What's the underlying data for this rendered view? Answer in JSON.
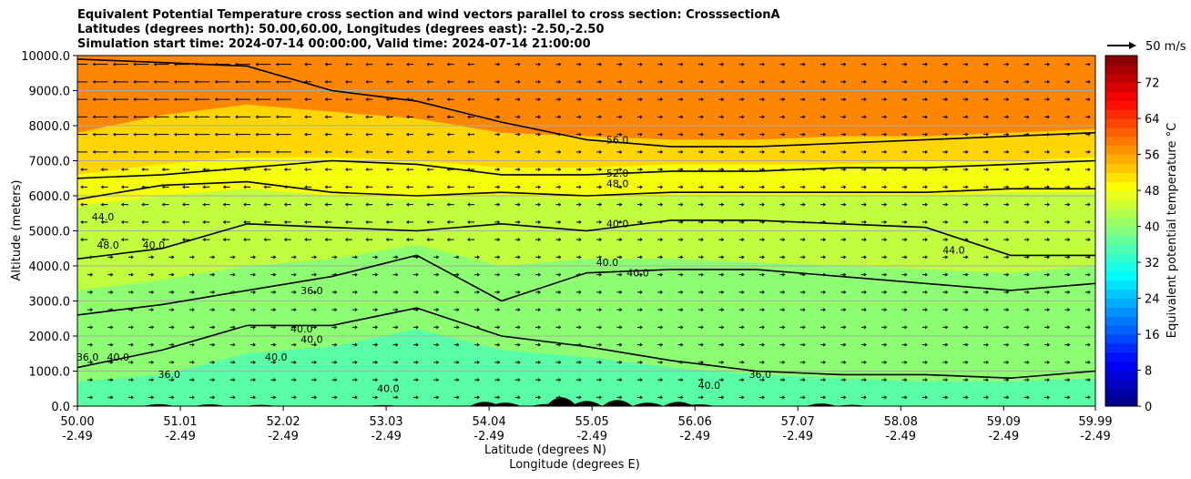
{
  "title_lines": [
    "Equivalent Potential Temperature cross section and wind vectors parallel to cross section: CrosssectionA",
    "Latitudes (degrees north): 50.00,60.00, Longitudes (degrees east): -2.50,-2.50",
    "Simulation start time: 2024-07-14 00:00:00, Valid time: 2024-07-14 21:00:00"
  ],
  "chart_data": {
    "type": "contour-cross-section",
    "ylabel": "Altitude (meters)",
    "xlabel_line1": "Latitude (degrees N)",
    "xlabel_line2": "Longitude (degrees E)",
    "ylim": [
      0,
      10000
    ],
    "xlim": [
      50.0,
      59.99
    ],
    "y_ticks": [
      "0.0",
      "1000.0",
      "2000.0",
      "3000.0",
      "4000.0",
      "5000.0",
      "6000.0",
      "7000.0",
      "8000.0",
      "9000.0",
      "10000.0"
    ],
    "x_ticks": [
      {
        "lat": "50.00",
        "lon": "-2.49"
      },
      {
        "lat": "51.01",
        "lon": "-2.49"
      },
      {
        "lat": "52.02",
        "lon": "-2.49"
      },
      {
        "lat": "53.03",
        "lon": "-2.49"
      },
      {
        "lat": "54.04",
        "lon": "-2.49"
      },
      {
        "lat": "55.05",
        "lon": "-2.49"
      },
      {
        "lat": "56.06",
        "lon": "-2.49"
      },
      {
        "lat": "57.07",
        "lon": "-2.49"
      },
      {
        "lat": "58.08",
        "lon": "-2.49"
      },
      {
        "lat": "59.09",
        "lon": "-2.49"
      },
      {
        "lat": "59.99",
        "lon": "-2.49"
      }
    ],
    "contour_lines": [
      {
        "level": "56.0",
        "height_m": [
          9900,
          9800,
          9700,
          9000,
          8700,
          8100,
          7600,
          7400,
          7400,
          7500,
          7600,
          7700,
          7800
        ]
      },
      {
        "level": "52.0",
        "height_m": [
          6500,
          6600,
          6800,
          7000,
          6900,
          6600,
          6600,
          6700,
          6700,
          6800,
          6800,
          6900,
          7000
        ]
      },
      {
        "level": "48.0",
        "height_m": [
          5900,
          6300,
          6400,
          6100,
          6000,
          6100,
          6000,
          6100,
          6100,
          6100,
          6100,
          6200,
          6200
        ]
      },
      {
        "level": "44.0",
        "height_m": [
          4200,
          4500,
          5200,
          5100,
          5000,
          5200,
          5000,
          5300,
          5300,
          5200,
          5100,
          4300,
          4300
        ]
      },
      {
        "level": "40.0",
        "height_m": [
          2600,
          2900,
          3300,
          3700,
          4300,
          3000,
          3800,
          3900,
          3900,
          3700,
          3500,
          3300,
          3500
        ]
      },
      {
        "level": "36.0",
        "height_m": [
          1100,
          1600,
          2300,
          2300,
          2800,
          2000,
          1700,
          1300,
          1000,
          900,
          900,
          800,
          1000
        ]
      }
    ],
    "contour_labels": [
      {
        "text": "56.0",
        "lat": 55.3,
        "alt": 7500
      },
      {
        "text": "52.0",
        "lat": 55.3,
        "alt": 6550
      },
      {
        "text": "48.0",
        "lat": 55.3,
        "alt": 6250
      },
      {
        "text": "40.0",
        "lat": 55.3,
        "alt": 5100
      },
      {
        "text": "40.0",
        "lat": 55.2,
        "alt": 4000
      },
      {
        "text": "40.0",
        "lat": 55.5,
        "alt": 3700
      },
      {
        "text": "44.0",
        "lat": 50.25,
        "alt": 5300
      },
      {
        "text": "48.0",
        "lat": 50.3,
        "alt": 4500
      },
      {
        "text": "40.0",
        "lat": 50.75,
        "alt": 4500
      },
      {
        "text": "36.0",
        "lat": 52.3,
        "alt": 3200
      },
      {
        "text": "40.0",
        "lat": 52.2,
        "alt": 2100
      },
      {
        "text": "40.0",
        "lat": 52.3,
        "alt": 1800
      },
      {
        "text": "40.0",
        "lat": 51.95,
        "alt": 1300
      },
      {
        "text": "44.0",
        "lat": 58.6,
        "alt": 4350
      },
      {
        "text": "36.0",
        "lat": 56.7,
        "alt": 800
      },
      {
        "text": "40.0",
        "lat": 56.2,
        "alt": 500
      },
      {
        "text": "36.0",
        "lat": 50.1,
        "alt": 1300
      },
      {
        "text": "40.0",
        "lat": 50.4,
        "alt": 1300
      },
      {
        "text": "36.0",
        "lat": 50.9,
        "alt": 800
      },
      {
        "text": "40.0",
        "lat": 53.05,
        "alt": 400
      }
    ],
    "colorbar": {
      "label": "Equivalent potential temperature $^\\circ$C",
      "label_display": "Equivalent potential temperature °C",
      "ticks": [
        "0",
        "8",
        "16",
        "24",
        "32",
        "40",
        "48",
        "56",
        "64",
        "72"
      ],
      "range": [
        0,
        78
      ]
    },
    "wind_key": {
      "label": "50 m/s"
    },
    "theta_field_bands": [
      {
        "value": 44,
        "height_m": [
          0,
          0,
          0,
          0,
          0,
          0,
          0,
          0,
          0,
          0,
          0,
          0,
          0
        ]
      },
      {
        "value": 40,
        "height_m": [
          700,
          900,
          1500,
          1700,
          2200,
          1600,
          1400,
          1100,
          900,
          800,
          700,
          700,
          800
        ]
      },
      {
        "value": 44,
        "height_m": [
          3300,
          3600,
          4000,
          4200,
          4600,
          4000,
          4200,
          4200,
          4100,
          4000,
          3900,
          3800,
          4000
        ]
      },
      {
        "value": 48,
        "height_m": [
          5700,
          6000,
          6200,
          6000,
          5900,
          6000,
          5900,
          6000,
          6000,
          6000,
          6000,
          6100,
          6100
        ]
      },
      {
        "value": 52,
        "height_m": [
          6600,
          6900,
          7100,
          7100,
          7000,
          6800,
          6800,
          6900,
          6900,
          6900,
          7000,
          7000,
          7100
        ]
      },
      {
        "value": 56,
        "height_m": [
          7800,
          8300,
          8600,
          8400,
          8200,
          7800,
          7700,
          7600,
          7600,
          7700,
          7700,
          7800,
          7900
        ]
      }
    ]
  }
}
